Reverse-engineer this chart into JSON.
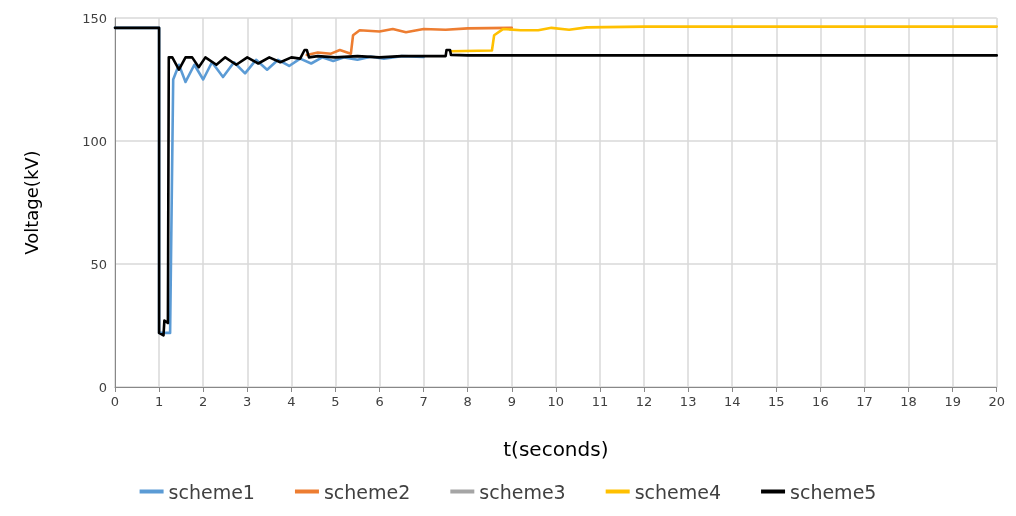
{
  "chart_data": {
    "type": "line",
    "xlabel": "t(seconds)",
    "ylabel": "Voltage(kV)",
    "xlim": [
      0,
      20
    ],
    "xticks": [
      0,
      1,
      2,
      3,
      4,
      5,
      6,
      7,
      8,
      9,
      10,
      11,
      12,
      13,
      14,
      15,
      16,
      17,
      18,
      19,
      20
    ],
    "ylim": [
      0,
      150
    ],
    "yticks": [
      0,
      50,
      100,
      150
    ],
    "grid": true,
    "legend": "bottom",
    "marker": "none",
    "line_style": "solid",
    "series": [
      {
        "name": "scheme1",
        "color": "#5b9bd5",
        "x": [
          0,
          1.0,
          1.0,
          1.25,
          1.32,
          1.45,
          1.6,
          1.8,
          2.0,
          2.2,
          2.45,
          2.7,
          2.95,
          3.2,
          3.45,
          3.7,
          3.95,
          4.2,
          4.45,
          4.7,
          4.95,
          5.2,
          5.5,
          5.8,
          6.1,
          6.5,
          7
        ],
        "values": [
          146,
          146,
          22,
          22,
          125,
          131,
          124,
          131,
          125,
          132,
          126,
          132,
          127.5,
          133,
          129,
          133,
          130.5,
          133.5,
          131.5,
          134,
          132.5,
          134,
          133,
          134.3,
          133.5,
          134.5,
          134.2
        ]
      },
      {
        "name": "scheme2",
        "color": "#ed7d31",
        "x": [
          4.35,
          4.6,
          4.9,
          5.1,
          5.35,
          5.4,
          5.55,
          6,
          6.3,
          6.6,
          7,
          7.5,
          8,
          9
        ],
        "values": [
          135,
          136,
          135.5,
          137,
          135.5,
          143,
          145,
          144.5,
          145.5,
          144.2,
          145.5,
          145.2,
          145.8,
          146
        ]
      },
      {
        "name": "scheme3",
        "color": "#a5a5a5"
      },
      {
        "name": "scheme4",
        "color": "#ffc000",
        "x": [
          7.6,
          8.55,
          8.6,
          8.8,
          9.2,
          9.6,
          9.9,
          10.3,
          10.7,
          12,
          20
        ],
        "values": [
          136.5,
          136.8,
          143,
          145.5,
          145,
          145,
          146,
          145.2,
          146.2,
          146.5,
          146.5
        ]
      },
      {
        "name": "scheme5",
        "color": "#000000",
        "x": [
          0,
          1.0,
          1.0,
          1.1,
          1.12,
          1.2,
          1.22,
          1.3,
          1.45,
          1.6,
          1.75,
          1.9,
          2.05,
          2.3,
          2.5,
          2.75,
          3.0,
          3.25,
          3.5,
          3.75,
          4.0,
          4.2,
          4.3,
          4.35,
          4.4,
          4.6,
          5,
          5.5,
          6,
          6.5,
          7,
          7.5,
          7.52,
          7.6,
          7.62,
          8,
          10,
          15,
          20
        ],
        "values": [
          146,
          146,
          22,
          21,
          27,
          26,
          134,
          134,
          129,
          134,
          134,
          130,
          134,
          131,
          134,
          131,
          134,
          131.5,
          134,
          132,
          134,
          133.5,
          137,
          137,
          134,
          134.5,
          134,
          134.5,
          134,
          134.5,
          134.5,
          134.5,
          137,
          137,
          135,
          134.8,
          134.8,
          134.8,
          134.8
        ]
      }
    ]
  }
}
